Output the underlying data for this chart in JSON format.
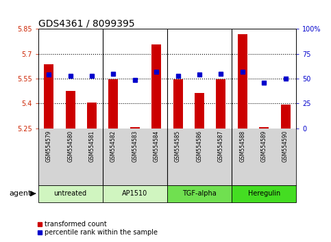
{
  "title": "GDS4361 / 8099395",
  "samples": [
    "GSM554579",
    "GSM554580",
    "GSM554581",
    "GSM554582",
    "GSM554583",
    "GSM554584",
    "GSM554585",
    "GSM554586",
    "GSM554587",
    "GSM554588",
    "GSM554589",
    "GSM554590"
  ],
  "red_values": [
    5.635,
    5.475,
    5.405,
    5.545,
    5.258,
    5.755,
    5.545,
    5.465,
    5.545,
    5.82,
    5.258,
    5.395
  ],
  "blue_values": [
    54,
    53,
    53,
    55,
    49,
    57,
    53,
    54,
    55,
    57,
    46,
    50
  ],
  "ymin": 5.25,
  "ymax": 5.85,
  "y2min": 0,
  "y2max": 100,
  "yticks": [
    5.25,
    5.4,
    5.55,
    5.7,
    5.85
  ],
  "ytick_labels": [
    "5.25",
    "5.4",
    "5.55",
    "5.7",
    "5.85"
  ],
  "y2ticks": [
    0,
    25,
    50,
    75,
    100
  ],
  "y2tick_labels": [
    "0",
    "25",
    "50",
    "75",
    "100%"
  ],
  "hlines": [
    5.4,
    5.55,
    5.7
  ],
  "groups": [
    {
      "label": "untreated",
      "start": 0,
      "end": 3,
      "color": "#d0f5c0"
    },
    {
      "label": "AP1510",
      "start": 3,
      "end": 6,
      "color": "#d0f5c0"
    },
    {
      "label": "TGF-alpha",
      "start": 6,
      "end": 9,
      "color": "#70e050"
    },
    {
      "label": "Heregulin",
      "start": 9,
      "end": 12,
      "color": "#44dd22"
    }
  ],
  "bar_color": "#cc0000",
  "dot_color": "#0000cc",
  "bar_width": 0.45,
  "agent_label": "agent",
  "legend_red_label": "transformed count",
  "legend_blue_label": "percentile rank within the sample",
  "left_tick_color": "#cc2200",
  "right_tick_color": "#0000cc",
  "bg_plot": "#ffffff",
  "bg_sample_row": "#d4d4d4",
  "title_fontsize": 10,
  "tick_fontsize": 7,
  "sample_fontsize": 5.5,
  "group_fontsize": 7,
  "legend_fontsize": 7,
  "agent_fontsize": 8
}
